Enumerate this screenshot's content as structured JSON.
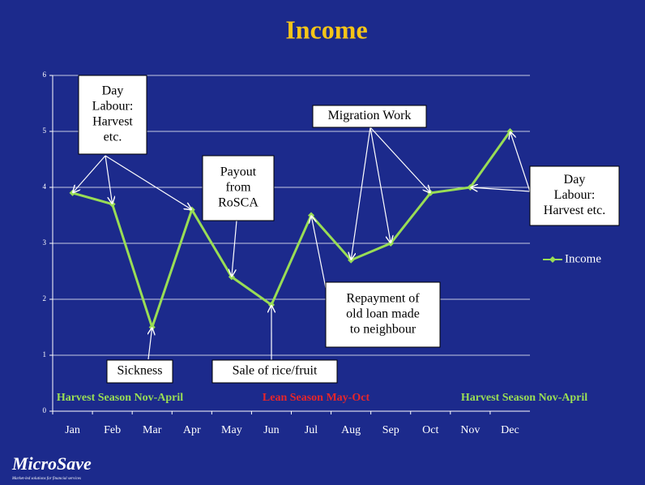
{
  "chart_data": {
    "type": "line",
    "title": "Income",
    "categories": [
      "Jan",
      "Feb",
      "Mar",
      "Apr",
      "May",
      "Jun",
      "Jul",
      "Aug",
      "Sep",
      "Oct",
      "Nov",
      "Dec"
    ],
    "series": [
      {
        "name": "Income",
        "color": "#99dd55",
        "values": [
          3.9,
          3.7,
          1.5,
          3.6,
          2.4,
          1.9,
          3.5,
          2.7,
          3.0,
          3.9,
          4.0,
          5.0
        ]
      }
    ],
    "ylim": [
      0,
      6
    ],
    "yticks": [
      0,
      1,
      2,
      3,
      4,
      5,
      6
    ],
    "grid": true,
    "legend": "right",
    "annotations": [
      {
        "lines": [
          "Day",
          "Labour:",
          "Harvest",
          "etc."
        ]
      },
      {
        "lines": [
          "Payout",
          "from",
          "RoSCA"
        ]
      },
      {
        "lines": [
          "Migration Work"
        ]
      },
      {
        "lines": [
          "Day",
          "Labour:",
          "Harvest etc."
        ]
      },
      {
        "lines": [
          "Sickness"
        ]
      },
      {
        "lines": [
          "Sale of rice/fruit"
        ]
      },
      {
        "lines": [
          "Repayment of",
          "old loan made",
          "to neighbour"
        ]
      }
    ],
    "seasons": [
      {
        "text": "Harvest Season Nov-April",
        "color": "#99dd55"
      },
      {
        "text": "Lean Season May-Oct",
        "color": "#e8262a"
      },
      {
        "text": "Harvest Season Nov-April",
        "color": "#99dd55"
      }
    ]
  },
  "logo": {
    "name": "MicroSave",
    "tagline": "Market-led solutions for financial services"
  }
}
